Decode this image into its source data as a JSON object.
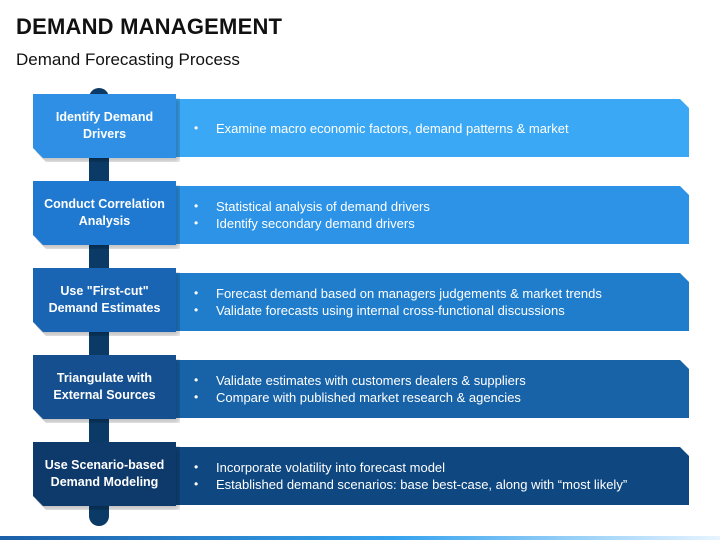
{
  "title": "DEMAND MANAGEMENT",
  "subtitle": "Demand Forecasting Process",
  "steps": [
    {
      "label": "Identify Demand Drivers",
      "bullets": [
        "Examine macro economic factors, demand patterns & market"
      ],
      "tab_color": "#2f8fe4",
      "band_color": "#3aa8f5"
    },
    {
      "label": "Conduct Correlation Analysis",
      "bullets": [
        "Statistical analysis of demand drivers",
        "Identify secondary demand drivers"
      ],
      "tab_color": "#1f79d0",
      "band_color": "#2d93e6"
    },
    {
      "label": "Use \"First-cut\" Demand Estimates",
      "bullets": [
        "Forecast demand based on managers judgements & market trends",
        "Validate forecasts using internal cross-functional discussions"
      ],
      "tab_color": "#1a64b4",
      "band_color": "#1f7dcc"
    },
    {
      "label": "Triangulate with External Sources",
      "bullets": [
        "Validate estimates with customers dealers & suppliers",
        "Compare with published market research & agencies"
      ],
      "tab_color": "#154f8f",
      "band_color": "#1863a8"
    },
    {
      "label": "Use Scenario-based Demand Modeling",
      "bullets": [
        "Incorporate volatility into forecast model",
        "Established demand scenarios: base best-case, along with “most likely”"
      ],
      "tab_color": "#0e3a6b",
      "band_color": "#0f4780"
    }
  ],
  "colors": {
    "spine": "#0b3a66",
    "title_text": "#111111",
    "footer_gradient_start": "#1b5fa8",
    "footer_gradient_end": "#e8f4ff"
  }
}
